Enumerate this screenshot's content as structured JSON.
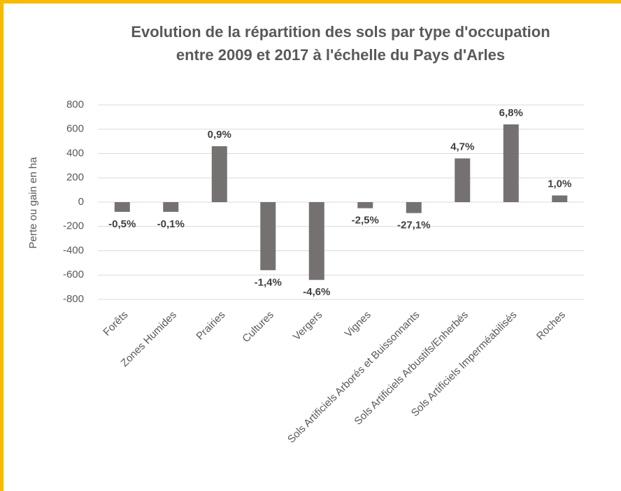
{
  "chart_data": {
    "type": "bar",
    "title": [
      "Evolution de la répartition des sols par type d'occupation",
      "entre 2009 et 2017 à l'échelle du Pays d'Arles"
    ],
    "y_label": "Perte ou gain en ha",
    "categories": [
      "Forêts",
      "Zones Humides",
      "Prairies",
      "Cultures",
      "Vergers",
      "Vignes",
      "Sols Artificiels Arborés et Buissonnants",
      "Sols Artificiels Arbustifs/Enherbés",
      "Sols Artificiels Imperméabilisés",
      "Roches"
    ],
    "values": [
      -80,
      -80,
      460,
      -560,
      -640,
      -50,
      -90,
      360,
      640,
      55
    ],
    "percentages": [
      "-0,5%",
      "-0,1%",
      "0,9%",
      "-1,4%",
      "-4,6%",
      "-2,5%",
      "-27,1%",
      "4,7%",
      "6,8%",
      "1,0%"
    ],
    "color": "#767171",
    "ylim": [
      -800,
      800
    ],
    "yticks": [
      -800,
      -600,
      -400,
      -200,
      0,
      200,
      400,
      600,
      800
    ],
    "grid": true
  }
}
